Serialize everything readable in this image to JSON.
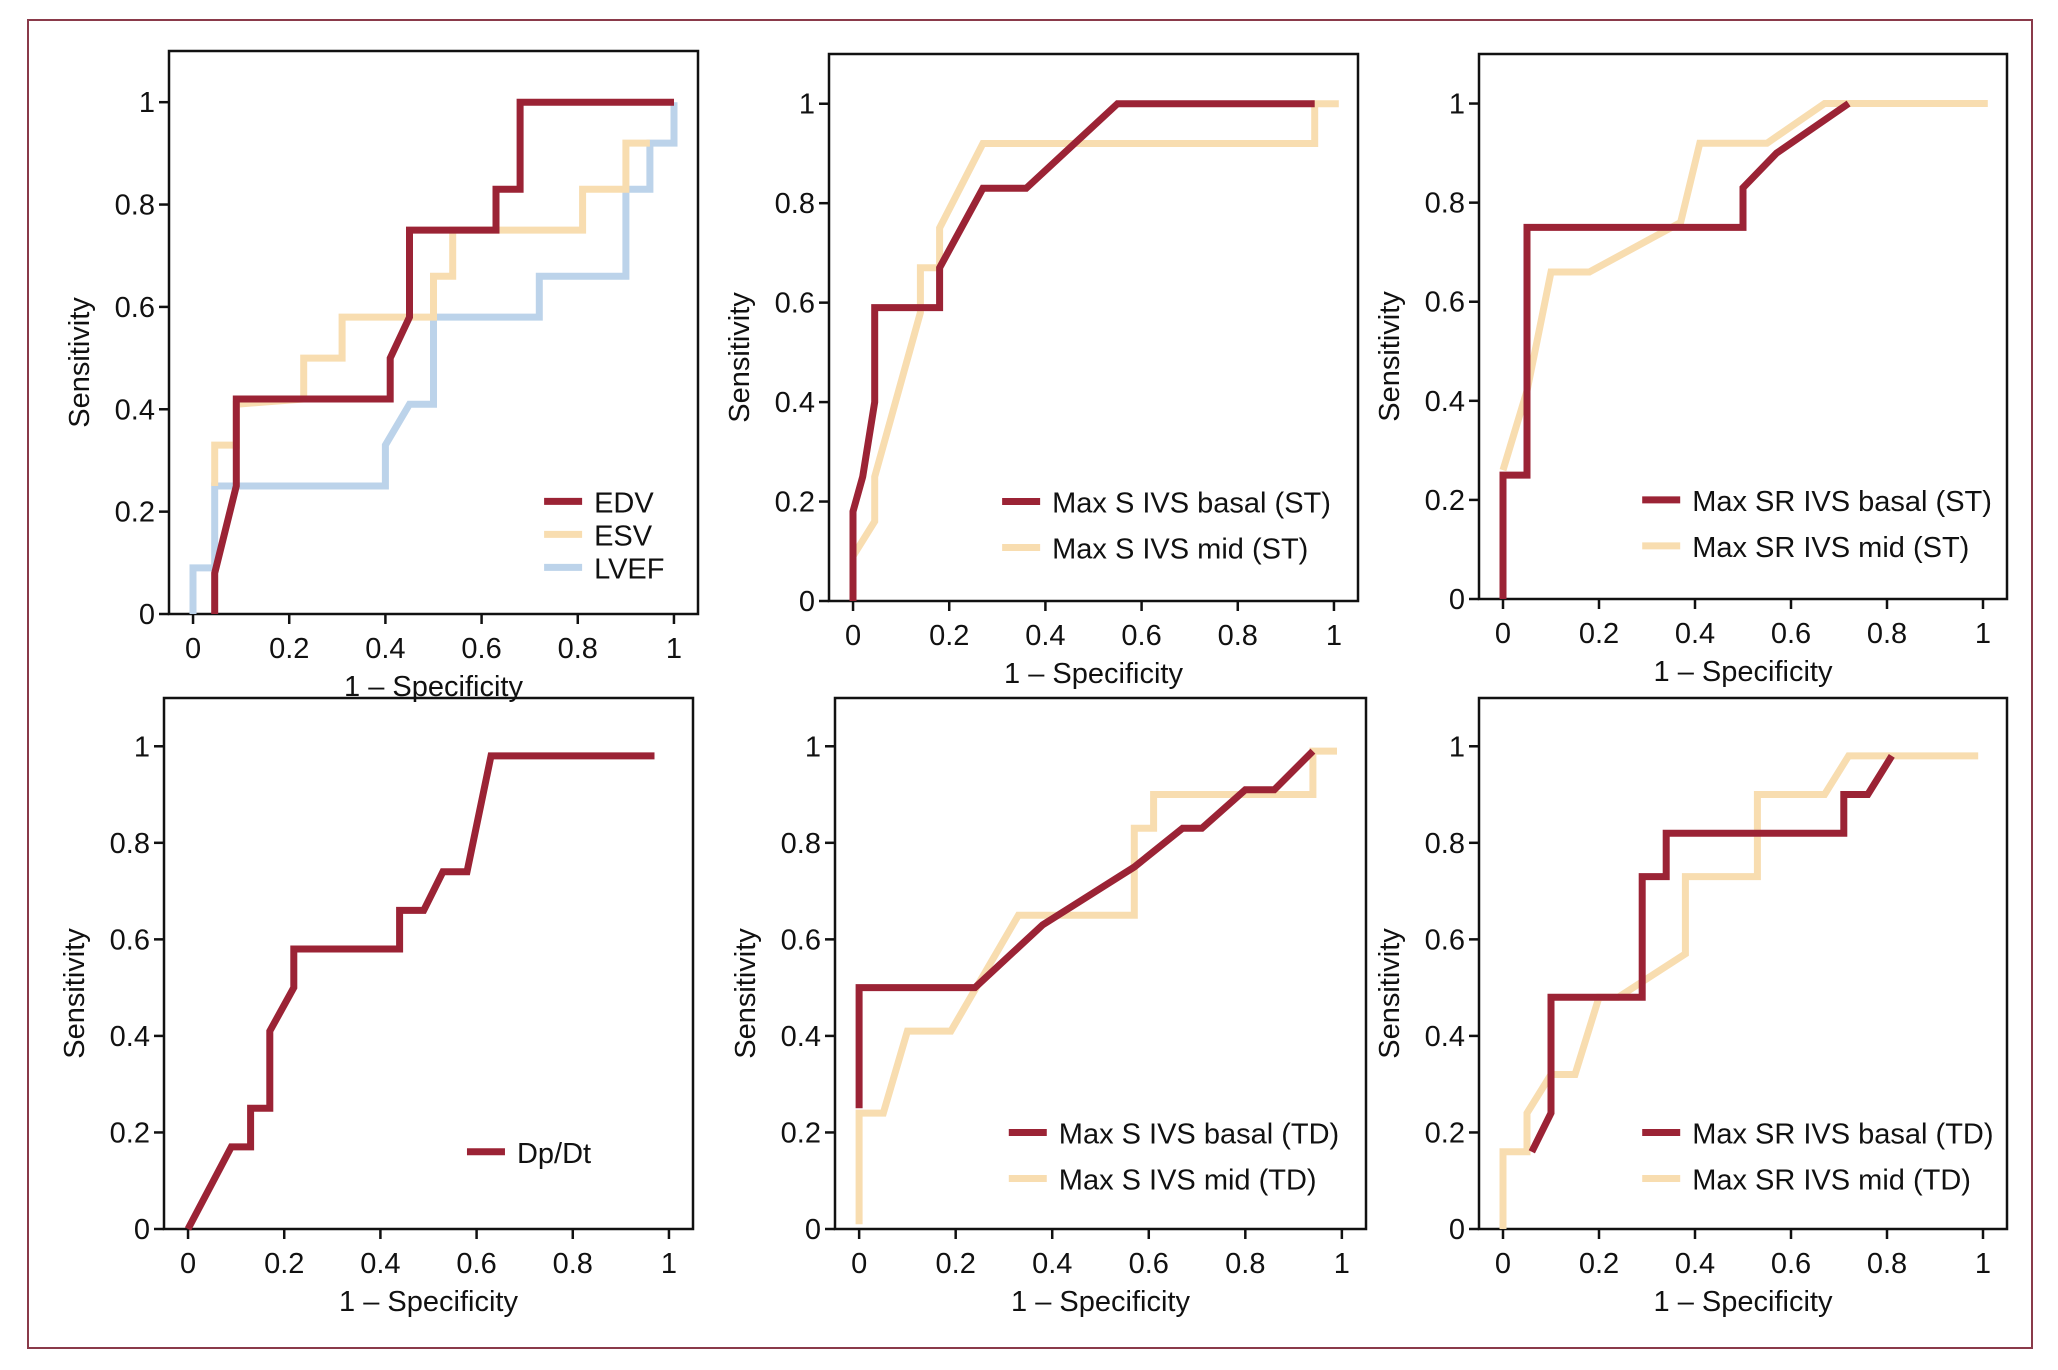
{
  "colors": {
    "frame": "#8a3a4a",
    "dark_red": "#9b2335",
    "light_tan": "#f8ddb0",
    "light_blue": "#bcd3ea"
  },
  "chart_data": [
    {
      "type": "line",
      "title": "",
      "xlabel": "1 – Specificity",
      "ylabel": "Sensitivity",
      "xlim": [
        -0.05,
        1.05
      ],
      "ylim": [
        0,
        1.1
      ],
      "xticks": [
        "0",
        "0.2",
        "0.4",
        "0.6",
        "0.8",
        "1"
      ],
      "yticks": [
        "0",
        "0.2",
        "0.4",
        "0.6",
        "0.8",
        "1"
      ],
      "legend": "bottom-right",
      "series": [
        {
          "name": "EDV",
          "color": "#9b2335",
          "points": [
            [
              0.045,
              0
            ],
            [
              0.045,
              0.08
            ],
            [
              0.09,
              0.25
            ],
            [
              0.09,
              0.42
            ],
            [
              0.41,
              0.42
            ],
            [
              0.41,
              0.5
            ],
            [
              0.45,
              0.58
            ],
            [
              0.45,
              0.75
            ],
            [
              0.54,
              0.75
            ],
            [
              0.63,
              0.75
            ],
            [
              0.63,
              0.83
            ],
            [
              0.68,
              0.83
            ],
            [
              0.68,
              1
            ],
            [
              1,
              1
            ]
          ]
        },
        {
          "name": "ESV",
          "color": "#f8ddb0",
          "points": [
            [
              0.045,
              0.25
            ],
            [
              0.045,
              0.33
            ],
            [
              0.09,
              0.33
            ],
            [
              0.09,
              0.41
            ],
            [
              0.23,
              0.42
            ],
            [
              0.23,
              0.5
            ],
            [
              0.31,
              0.5
            ],
            [
              0.31,
              0.58
            ],
            [
              0.5,
              0.58
            ],
            [
              0.5,
              0.66
            ],
            [
              0.54,
              0.66
            ],
            [
              0.54,
              0.75
            ],
            [
              0.81,
              0.75
            ],
            [
              0.81,
              0.83
            ],
            [
              0.9,
              0.83
            ],
            [
              0.9,
              0.92
            ],
            [
              0.95,
              0.92
            ]
          ]
        },
        {
          "name": "LVEF",
          "color": "#bcd3ea",
          "points": [
            [
              0.0,
              0
            ],
            [
              0.0,
              0.09
            ],
            [
              0.045,
              0.09
            ],
            [
              0.045,
              0.25
            ],
            [
              0.4,
              0.25
            ],
            [
              0.4,
              0.33
            ],
            [
              0.45,
              0.41
            ],
            [
              0.5,
              0.41
            ],
            [
              0.5,
              0.58
            ],
            [
              0.72,
              0.58
            ],
            [
              0.72,
              0.66
            ],
            [
              0.9,
              0.66
            ],
            [
              0.9,
              0.83
            ],
            [
              0.95,
              0.83
            ],
            [
              0.95,
              0.92
            ],
            [
              1,
              0.92
            ],
            [
              1,
              1
            ]
          ]
        }
      ]
    },
    {
      "type": "line",
      "title": "",
      "xlabel": "1 – Specificity",
      "ylabel": "Sensitivity",
      "xlim": [
        -0.05,
        1.05
      ],
      "ylim": [
        0,
        1.1
      ],
      "xticks": [
        "0",
        "0.2",
        "0.4",
        "0.6",
        "0.8",
        "1"
      ],
      "yticks": [
        "0",
        "0.2",
        "0.4",
        "0.6",
        "0.8",
        "1"
      ],
      "legend": "bottom-right",
      "series": [
        {
          "name": "Max S IVS basal (ST)",
          "color": "#9b2335",
          "points": [
            [
              0,
              0
            ],
            [
              0,
              0.18
            ],
            [
              0.02,
              0.25
            ],
            [
              0.045,
              0.4
            ],
            [
              0.045,
              0.59
            ],
            [
              0.18,
              0.59
            ],
            [
              0.18,
              0.67
            ],
            [
              0.27,
              0.83
            ],
            [
              0.36,
              0.83
            ],
            [
              0.55,
              1
            ],
            [
              0.96,
              1
            ]
          ]
        },
        {
          "name": "Max S IVS mid (ST)",
          "color": "#f8ddb0",
          "points": [
            [
              0,
              0.09
            ],
            [
              0.045,
              0.16
            ],
            [
              0.045,
              0.25
            ],
            [
              0.14,
              0.58
            ],
            [
              0.14,
              0.67
            ],
            [
              0.18,
              0.67
            ],
            [
              0.18,
              0.75
            ],
            [
              0.27,
              0.92
            ],
            [
              0.96,
              0.92
            ],
            [
              0.96,
              1
            ],
            [
              1.01,
              1
            ]
          ]
        }
      ]
    },
    {
      "type": "line",
      "title": "",
      "xlabel": "1 – Specificity",
      "ylabel": "Sensitivity",
      "xlim": [
        -0.05,
        1.05
      ],
      "ylim": [
        0,
        1.1
      ],
      "xticks": [
        "0",
        "0.2",
        "0.4",
        "0.6",
        "0.8",
        "1"
      ],
      "yticks": [
        "0",
        "0.2",
        "0.4",
        "0.6",
        "0.8",
        "1"
      ],
      "legend": "bottom-right",
      "series": [
        {
          "name": "Max SR IVS basal (ST)",
          "color": "#9b2335",
          "points": [
            [
              0,
              0
            ],
            [
              0,
              0.25
            ],
            [
              0.05,
              0.25
            ],
            [
              0.05,
              0.75
            ],
            [
              0.5,
              0.75
            ],
            [
              0.5,
              0.83
            ],
            [
              0.57,
              0.9
            ],
            [
              0.72,
              1
            ]
          ]
        },
        {
          "name": "Max SR IVS mid (ST)",
          "color": "#f8ddb0",
          "points": [
            [
              0,
              0.26
            ],
            [
              0.05,
              0.42
            ],
            [
              0.1,
              0.66
            ],
            [
              0.18,
              0.66
            ],
            [
              0.37,
              0.76
            ],
            [
              0.41,
              0.92
            ],
            [
              0.55,
              0.92
            ],
            [
              0.67,
              1
            ],
            [
              1.01,
              1
            ]
          ]
        }
      ]
    },
    {
      "type": "line",
      "title": "",
      "xlabel": "1 – Specificity",
      "ylabel": "Sensitivity",
      "xlim": [
        -0.05,
        1.05
      ],
      "ylim": [
        0,
        1.1
      ],
      "xticks": [
        "0",
        "0.2",
        "0.4",
        "0.6",
        "0.8",
        "1"
      ],
      "yticks": [
        "0",
        "0.2",
        "0.4",
        "0.6",
        "0.8",
        "1"
      ],
      "legend": "bottom-right",
      "series": [
        {
          "name": "Dp/Dt",
          "color": "#9b2335",
          "points": [
            [
              0,
              0
            ],
            [
              0.09,
              0.17
            ],
            [
              0.13,
              0.17
            ],
            [
              0.13,
              0.25
            ],
            [
              0.17,
              0.25
            ],
            [
              0.17,
              0.41
            ],
            [
              0.22,
              0.5
            ],
            [
              0.22,
              0.58
            ],
            [
              0.44,
              0.58
            ],
            [
              0.44,
              0.66
            ],
            [
              0.49,
              0.66
            ],
            [
              0.53,
              0.74
            ],
            [
              0.58,
              0.74
            ],
            [
              0.63,
              0.98
            ],
            [
              0.97,
              0.98
            ]
          ]
        }
      ]
    },
    {
      "type": "line",
      "title": "",
      "xlabel": "1 – Specificity",
      "ylabel": "Sensitivity",
      "xlim": [
        -0.05,
        1.05
      ],
      "ylim": [
        0,
        1.1
      ],
      "xticks": [
        "0",
        "0.2",
        "0.4",
        "0.6",
        "0.8",
        "1"
      ],
      "yticks": [
        "0",
        "0.2",
        "0.4",
        "0.6",
        "0.8",
        "1"
      ],
      "legend": "bottom-right",
      "series": [
        {
          "name": "Max S IVS basal (TD)",
          "color": "#9b2335",
          "points": [
            [
              0,
              0.25
            ],
            [
              0,
              0.5
            ],
            [
              0.24,
              0.5
            ],
            [
              0.38,
              0.63
            ],
            [
              0.57,
              0.75
            ],
            [
              0.67,
              0.83
            ],
            [
              0.71,
              0.83
            ],
            [
              0.8,
              0.91
            ],
            [
              0.86,
              0.91
            ],
            [
              0.94,
              0.99
            ]
          ]
        },
        {
          "name": "Max S IVS mid (TD)",
          "color": "#f8ddb0",
          "points": [
            [
              0,
              0.01
            ],
            [
              0,
              0.24
            ],
            [
              0.05,
              0.24
            ],
            [
              0.1,
              0.41
            ],
            [
              0.19,
              0.41
            ],
            [
              0.33,
              0.65
            ],
            [
              0.57,
              0.65
            ],
            [
              0.57,
              0.83
            ],
            [
              0.61,
              0.83
            ],
            [
              0.61,
              0.9
            ],
            [
              0.94,
              0.9
            ],
            [
              0.94,
              0.99
            ],
            [
              0.99,
              0.99
            ]
          ]
        }
      ]
    },
    {
      "type": "line",
      "title": "",
      "xlabel": "1 – Specificity",
      "ylabel": "Sensitivity",
      "xlim": [
        -0.05,
        1.05
      ],
      "ylim": [
        0,
        1.1
      ],
      "xticks": [
        "0",
        "0.2",
        "0.4",
        "0.6",
        "0.8",
        "1"
      ],
      "yticks": [
        "0",
        "0.2",
        "0.4",
        "0.6",
        "0.8",
        "1"
      ],
      "legend": "bottom-right",
      "series": [
        {
          "name": "Max SR IVS basal (TD)",
          "color": "#9b2335",
          "points": [
            [
              0.06,
              0.16
            ],
            [
              0.1,
              0.24
            ],
            [
              0.1,
              0.48
            ],
            [
              0.29,
              0.48
            ],
            [
              0.29,
              0.73
            ],
            [
              0.34,
              0.73
            ],
            [
              0.34,
              0.82
            ],
            [
              0.71,
              0.82
            ],
            [
              0.71,
              0.9
            ],
            [
              0.76,
              0.9
            ],
            [
              0.81,
              0.98
            ]
          ]
        },
        {
          "name": "Max SR IVS mid (TD)",
          "color": "#f8ddb0",
          "points": [
            [
              0,
              0
            ],
            [
              0,
              0.16
            ],
            [
              0.05,
              0.16
            ],
            [
              0.05,
              0.24
            ],
            [
              0.1,
              0.32
            ],
            [
              0.15,
              0.32
            ],
            [
              0.2,
              0.48
            ],
            [
              0.24,
              0.48
            ],
            [
              0.38,
              0.57
            ],
            [
              0.38,
              0.73
            ],
            [
              0.53,
              0.73
            ],
            [
              0.53,
              0.9
            ],
            [
              0.67,
              0.9
            ],
            [
              0.72,
              0.98
            ],
            [
              0.99,
              0.98
            ]
          ]
        }
      ]
    }
  ]
}
